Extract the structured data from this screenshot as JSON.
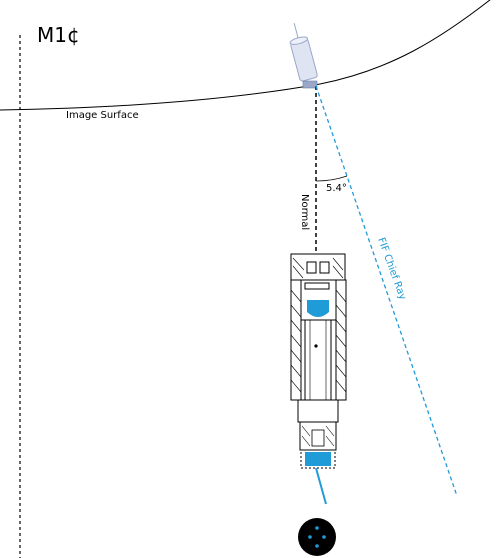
{
  "title": "M1¢",
  "labels": {
    "image_surface": "Image Surface",
    "normal": "Normal",
    "angle": "5.4°",
    "chief_ray": "FIF Chief Ray"
  },
  "colors": {
    "accent_blue": "#1f9bd7",
    "line_black": "#000000",
    "tube_gray": "#9aa7c9"
  }
}
